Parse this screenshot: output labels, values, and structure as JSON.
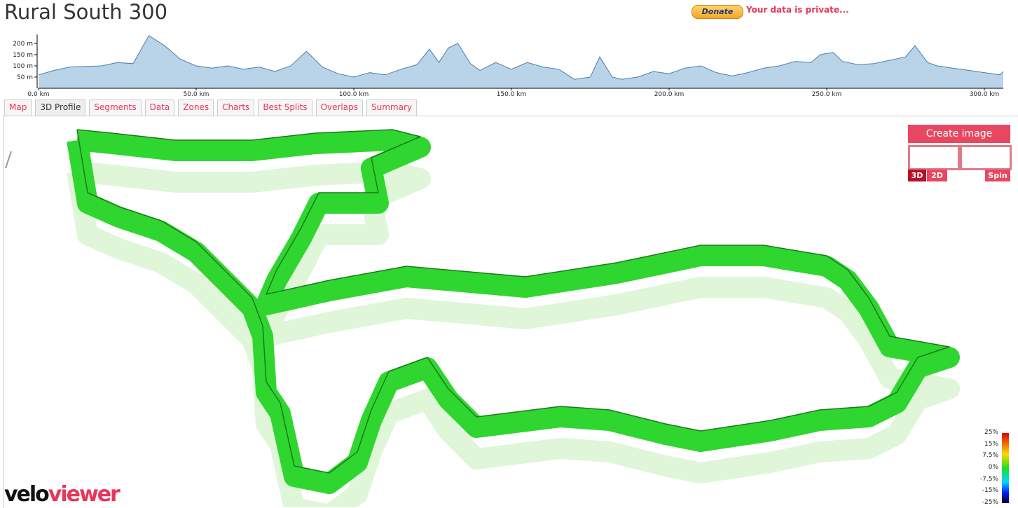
{
  "header": {
    "title": "Rural South 300",
    "donate": "Donate",
    "privacy": "Your data is private..."
  },
  "chart_data": {
    "type": "area",
    "color": "#b9d3e8",
    "line_color": "#4a7fae",
    "x": [
      0,
      5,
      10,
      20,
      25,
      30,
      35,
      40,
      45,
      50,
      55,
      60,
      65,
      70,
      75,
      80,
      85,
      90,
      95,
      100,
      105,
      110,
      115,
      120,
      124,
      127,
      130,
      133,
      137,
      140,
      145,
      150,
      155,
      160,
      165,
      170,
      175,
      178,
      182,
      185,
      190,
      195,
      200,
      205,
      210,
      215,
      220,
      225,
      230,
      235,
      240,
      245,
      248,
      252,
      255,
      260,
      265,
      270,
      275,
      278,
      282,
      285,
      290,
      295,
      300,
      305,
      306
    ],
    "values": [
      60,
      80,
      95,
      100,
      115,
      110,
      235,
      190,
      130,
      100,
      90,
      100,
      85,
      95,
      75,
      100,
      165,
      95,
      65,
      50,
      70,
      60,
      85,
      105,
      175,
      115,
      180,
      200,
      110,
      80,
      115,
      85,
      115,
      95,
      85,
      40,
      50,
      140,
      50,
      40,
      50,
      75,
      65,
      90,
      100,
      70,
      55,
      70,
      90,
      100,
      120,
      115,
      150,
      160,
      120,
      105,
      110,
      125,
      140,
      190,
      115,
      100,
      90,
      80,
      70,
      60,
      75
    ],
    "xlim": [
      0,
      306
    ],
    "ylim": [
      0,
      240
    ],
    "xticks": [
      {
        "value": 0,
        "label": "0.0 km"
      },
      {
        "value": 50,
        "label": "50.0 km"
      },
      {
        "value": 100,
        "label": "100.0 km"
      },
      {
        "value": 150,
        "label": "150.0 km"
      },
      {
        "value": 200,
        "label": "200.0 km"
      },
      {
        "value": 250,
        "label": "250.0 km"
      },
      {
        "value": 300,
        "label": "300.0 km"
      }
    ],
    "yticks": [
      {
        "value": 50,
        "label": "50 m"
      },
      {
        "value": 100,
        "label": "100 m"
      },
      {
        "value": 150,
        "label": "150 m"
      },
      {
        "value": 200,
        "label": "200 m"
      }
    ]
  },
  "tabs": [
    "Map",
    "3D Profile",
    "Segments",
    "Data",
    "Zones",
    "Charts",
    "Best Splits",
    "Overlaps",
    "Summary"
  ],
  "active_tab": "3D Profile",
  "controls": {
    "create_image": "Create image",
    "view_3d": "3D",
    "view_2d": "2D",
    "spin": "Spin"
  },
  "gradient_legend": {
    "labels": [
      "25%",
      "15%",
      "7.5%",
      "0%",
      "-7.5%",
      "-15%",
      "-25%"
    ]
  },
  "logo": {
    "velo": "velo",
    "viewer": "viewer"
  }
}
